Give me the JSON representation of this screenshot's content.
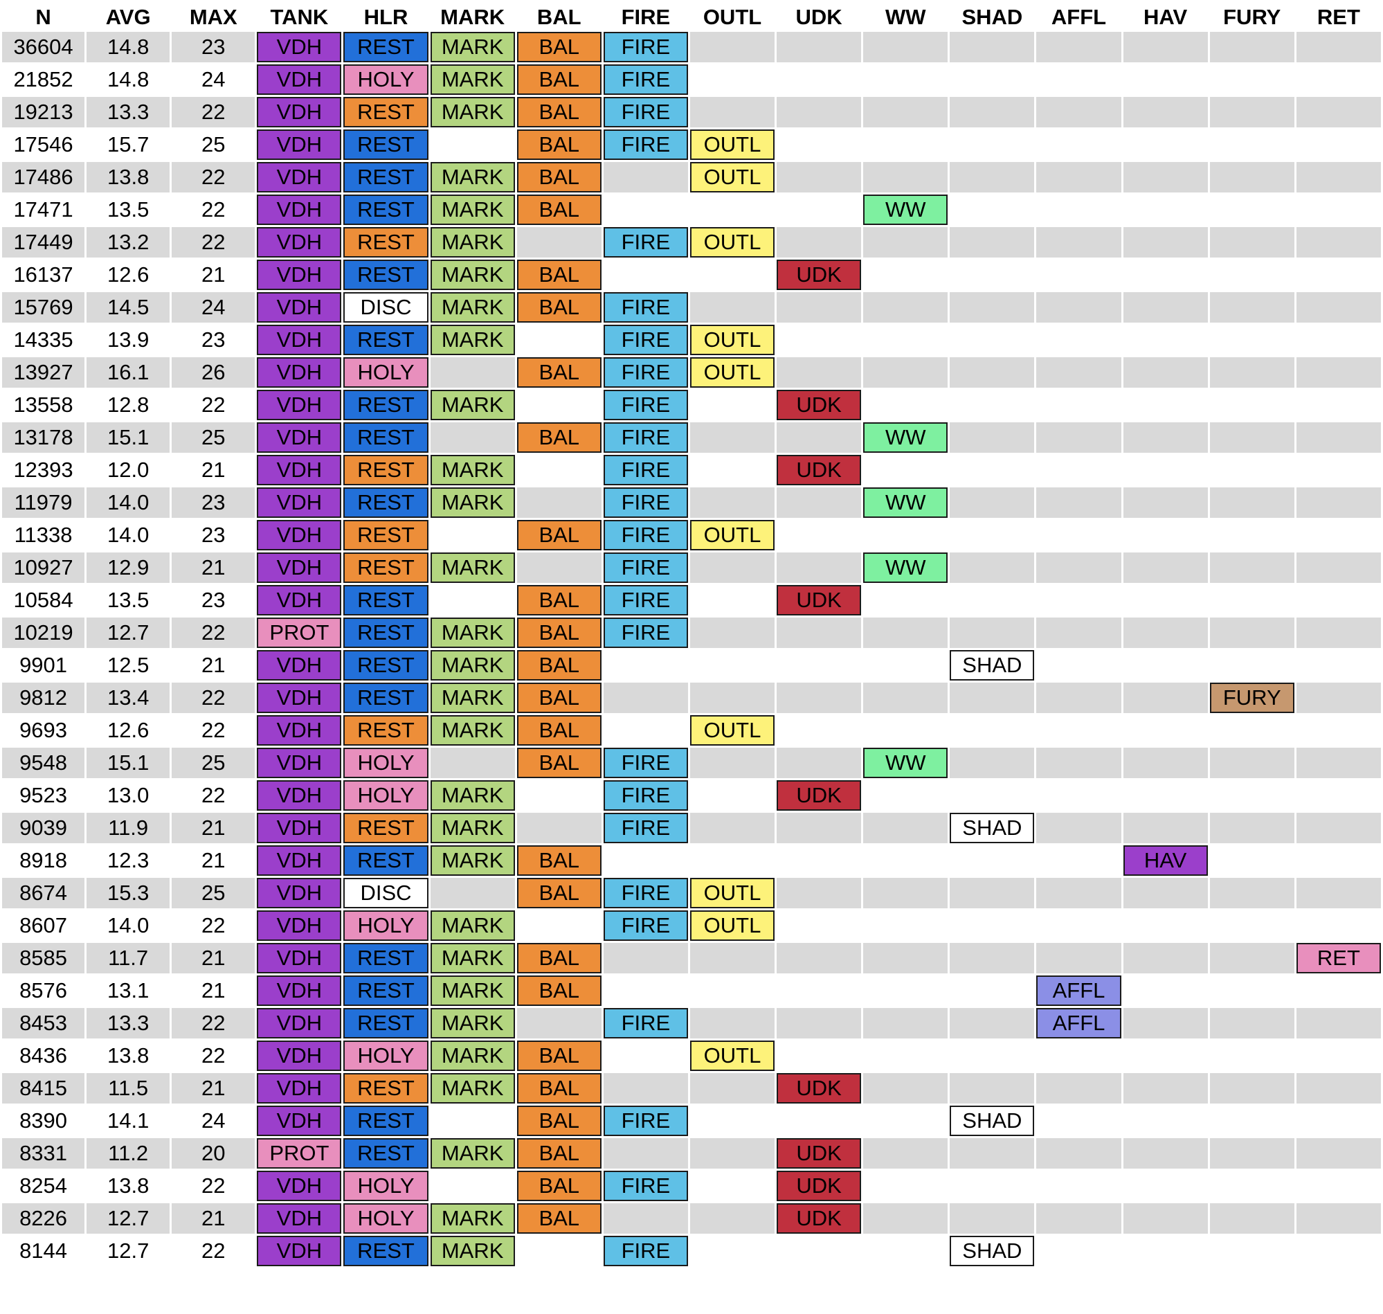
{
  "headers": [
    "N",
    "AVG",
    "MAX",
    "TANK",
    "HLR",
    "MARK",
    "BAL",
    "FIRE",
    "OUTL",
    "UDK",
    "WW",
    "SHAD",
    "AFFL",
    "HAV",
    "FURY",
    "RET"
  ],
  "spec_colors": {
    "VDH": "#9b3fcb",
    "PROT": "#e88fbd",
    "REST": "#ed8e39",
    "REST_ALT": "#2270d9",
    "HOLY": "#e88fbd",
    "DISC": "#ffffff",
    "MARK": "#b3d580",
    "BAL": "#ed8e39",
    "FIRE": "#5fc0e6",
    "OUTL": "#fdf27a",
    "UDK": "#c0303e",
    "WW": "#7ef0a0",
    "SHAD": "#ffffff",
    "AFFL": "#8b8fe6",
    "HAV": "#9b3fcb",
    "FURY": "#c6986f",
    "RET": "#e88fbd"
  },
  "rows": [
    {
      "n": "36604",
      "avg": "14.8",
      "max": "23",
      "cells": [
        "VDH",
        "REST",
        "MARK",
        "BAL",
        "FIRE",
        "",
        "",
        "",
        "",
        "",
        "",
        "",
        ""
      ],
      "hlr_blue": true
    },
    {
      "n": "21852",
      "avg": "14.8",
      "max": "24",
      "cells": [
        "VDH",
        "HOLY",
        "MARK",
        "BAL",
        "FIRE",
        "",
        "",
        "",
        "",
        "",
        "",
        "",
        ""
      ],
      "hlr_blue": false
    },
    {
      "n": "19213",
      "avg": "13.3",
      "max": "22",
      "cells": [
        "VDH",
        "REST",
        "MARK",
        "BAL",
        "FIRE",
        "",
        "",
        "",
        "",
        "",
        "",
        "",
        ""
      ],
      "hlr_blue": false
    },
    {
      "n": "17546",
      "avg": "15.7",
      "max": "25",
      "cells": [
        "VDH",
        "REST",
        "",
        "BAL",
        "FIRE",
        "OUTL",
        "",
        "",
        "",
        "",
        "",
        "",
        ""
      ],
      "hlr_blue": true
    },
    {
      "n": "17486",
      "avg": "13.8",
      "max": "22",
      "cells": [
        "VDH",
        "REST",
        "MARK",
        "BAL",
        "",
        "OUTL",
        "",
        "",
        "",
        "",
        "",
        "",
        ""
      ],
      "hlr_blue": true
    },
    {
      "n": "17471",
      "avg": "13.5",
      "max": "22",
      "cells": [
        "VDH",
        "REST",
        "MARK",
        "BAL",
        "",
        "",
        "",
        "WW",
        "",
        "",
        "",
        "",
        ""
      ],
      "hlr_blue": true
    },
    {
      "n": "17449",
      "avg": "13.2",
      "max": "22",
      "cells": [
        "VDH",
        "REST",
        "MARK",
        "",
        "FIRE",
        "OUTL",
        "",
        "",
        "",
        "",
        "",
        "",
        ""
      ],
      "hlr_blue": false
    },
    {
      "n": "16137",
      "avg": "12.6",
      "max": "21",
      "cells": [
        "VDH",
        "REST",
        "MARK",
        "BAL",
        "",
        "",
        "UDK",
        "",
        "",
        "",
        "",
        "",
        ""
      ],
      "hlr_blue": true
    },
    {
      "n": "15769",
      "avg": "14.5",
      "max": "24",
      "cells": [
        "VDH",
        "DISC",
        "MARK",
        "BAL",
        "FIRE",
        "",
        "",
        "",
        "",
        "",
        "",
        "",
        ""
      ],
      "hlr_blue": false
    },
    {
      "n": "14335",
      "avg": "13.9",
      "max": "23",
      "cells": [
        "VDH",
        "REST",
        "MARK",
        "",
        "FIRE",
        "OUTL",
        "",
        "",
        "",
        "",
        "",
        "",
        ""
      ],
      "hlr_blue": true
    },
    {
      "n": "13927",
      "avg": "16.1",
      "max": "26",
      "cells": [
        "VDH",
        "HOLY",
        "",
        "BAL",
        "FIRE",
        "OUTL",
        "",
        "",
        "",
        "",
        "",
        "",
        ""
      ],
      "hlr_blue": false
    },
    {
      "n": "13558",
      "avg": "12.8",
      "max": "22",
      "cells": [
        "VDH",
        "REST",
        "MARK",
        "",
        "FIRE",
        "",
        "UDK",
        "",
        "",
        "",
        "",
        "",
        ""
      ],
      "hlr_blue": true
    },
    {
      "n": "13178",
      "avg": "15.1",
      "max": "25",
      "cells": [
        "VDH",
        "REST",
        "",
        "BAL",
        "FIRE",
        "",
        "",
        "WW",
        "",
        "",
        "",
        "",
        ""
      ],
      "hlr_blue": true
    },
    {
      "n": "12393",
      "avg": "12.0",
      "max": "21",
      "cells": [
        "VDH",
        "REST",
        "MARK",
        "",
        "FIRE",
        "",
        "UDK",
        "",
        "",
        "",
        "",
        "",
        ""
      ],
      "hlr_blue": false
    },
    {
      "n": "11979",
      "avg": "14.0",
      "max": "23",
      "cells": [
        "VDH",
        "REST",
        "MARK",
        "",
        "FIRE",
        "",
        "",
        "WW",
        "",
        "",
        "",
        "",
        ""
      ],
      "hlr_blue": true
    },
    {
      "n": "11338",
      "avg": "14.0",
      "max": "23",
      "cells": [
        "VDH",
        "REST",
        "",
        "BAL",
        "FIRE",
        "OUTL",
        "",
        "",
        "",
        "",
        "",
        "",
        ""
      ],
      "hlr_blue": false
    },
    {
      "n": "10927",
      "avg": "12.9",
      "max": "21",
      "cells": [
        "VDH",
        "REST",
        "MARK",
        "",
        "FIRE",
        "",
        "",
        "WW",
        "",
        "",
        "",
        "",
        ""
      ],
      "hlr_blue": false
    },
    {
      "n": "10584",
      "avg": "13.5",
      "max": "23",
      "cells": [
        "VDH",
        "REST",
        "",
        "BAL",
        "FIRE",
        "",
        "UDK",
        "",
        "",
        "",
        "",
        "",
        ""
      ],
      "hlr_blue": true
    },
    {
      "n": "10219",
      "avg": "12.7",
      "max": "22",
      "cells": [
        "PROT",
        "REST",
        "MARK",
        "BAL",
        "FIRE",
        "",
        "",
        "",
        "",
        "",
        "",
        "",
        ""
      ],
      "hlr_blue": true
    },
    {
      "n": "9901",
      "avg": "12.5",
      "max": "21",
      "cells": [
        "VDH",
        "REST",
        "MARK",
        "BAL",
        "",
        "",
        "",
        "",
        "SHAD",
        "",
        "",
        "",
        ""
      ],
      "hlr_blue": true
    },
    {
      "n": "9812",
      "avg": "13.4",
      "max": "22",
      "cells": [
        "VDH",
        "REST",
        "MARK",
        "BAL",
        "",
        "",
        "",
        "",
        "",
        "",
        "",
        "FURY",
        ""
      ],
      "hlr_blue": true
    },
    {
      "n": "9693",
      "avg": "12.6",
      "max": "22",
      "cells": [
        "VDH",
        "REST",
        "MARK",
        "BAL",
        "",
        "OUTL",
        "",
        "",
        "",
        "",
        "",
        "",
        ""
      ],
      "hlr_blue": false
    },
    {
      "n": "9548",
      "avg": "15.1",
      "max": "25",
      "cells": [
        "VDH",
        "HOLY",
        "",
        "BAL",
        "FIRE",
        "",
        "",
        "WW",
        "",
        "",
        "",
        "",
        ""
      ],
      "hlr_blue": false
    },
    {
      "n": "9523",
      "avg": "13.0",
      "max": "22",
      "cells": [
        "VDH",
        "HOLY",
        "MARK",
        "",
        "FIRE",
        "",
        "UDK",
        "",
        "",
        "",
        "",
        "",
        ""
      ],
      "hlr_blue": false
    },
    {
      "n": "9039",
      "avg": "11.9",
      "max": "21",
      "cells": [
        "VDH",
        "REST",
        "MARK",
        "",
        "FIRE",
        "",
        "",
        "",
        "SHAD",
        "",
        "",
        "",
        ""
      ],
      "hlr_blue": false
    },
    {
      "n": "8918",
      "avg": "12.3",
      "max": "21",
      "cells": [
        "VDH",
        "REST",
        "MARK",
        "BAL",
        "",
        "",
        "",
        "",
        "",
        "",
        "HAV",
        "",
        ""
      ],
      "hlr_blue": true
    },
    {
      "n": "8674",
      "avg": "15.3",
      "max": "25",
      "cells": [
        "VDH",
        "DISC",
        "",
        "BAL",
        "FIRE",
        "OUTL",
        "",
        "",
        "",
        "",
        "",
        "",
        ""
      ],
      "hlr_blue": false
    },
    {
      "n": "8607",
      "avg": "14.0",
      "max": "22",
      "cells": [
        "VDH",
        "HOLY",
        "MARK",
        "",
        "FIRE",
        "OUTL",
        "",
        "",
        "",
        "",
        "",
        "",
        ""
      ],
      "hlr_blue": false
    },
    {
      "n": "8585",
      "avg": "11.7",
      "max": "21",
      "cells": [
        "VDH",
        "REST",
        "MARK",
        "BAL",
        "",
        "",
        "",
        "",
        "",
        "",
        "",
        "",
        "RET"
      ],
      "hlr_blue": true
    },
    {
      "n": "8576",
      "avg": "13.1",
      "max": "21",
      "cells": [
        "VDH",
        "REST",
        "MARK",
        "BAL",
        "",
        "",
        "",
        "",
        "",
        "AFFL",
        "",
        "",
        ""
      ],
      "hlr_blue": true
    },
    {
      "n": "8453",
      "avg": "13.3",
      "max": "22",
      "cells": [
        "VDH",
        "REST",
        "MARK",
        "",
        "FIRE",
        "",
        "",
        "",
        "",
        "AFFL",
        "",
        "",
        ""
      ],
      "hlr_blue": true
    },
    {
      "n": "8436",
      "avg": "13.8",
      "max": "22",
      "cells": [
        "VDH",
        "HOLY",
        "MARK",
        "BAL",
        "",
        "OUTL",
        "",
        "",
        "",
        "",
        "",
        "",
        ""
      ],
      "hlr_blue": false
    },
    {
      "n": "8415",
      "avg": "11.5",
      "max": "21",
      "cells": [
        "VDH",
        "REST",
        "MARK",
        "BAL",
        "",
        "",
        "UDK",
        "",
        "",
        "",
        "",
        "",
        ""
      ],
      "hlr_blue": false
    },
    {
      "n": "8390",
      "avg": "14.1",
      "max": "24",
      "cells": [
        "VDH",
        "REST",
        "",
        "BAL",
        "FIRE",
        "",
        "",
        "",
        "SHAD",
        "",
        "",
        "",
        ""
      ],
      "hlr_blue": true
    },
    {
      "n": "8331",
      "avg": "11.2",
      "max": "20",
      "cells": [
        "PROT",
        "REST",
        "MARK",
        "BAL",
        "",
        "",
        "UDK",
        "",
        "",
        "",
        "",
        "",
        ""
      ],
      "hlr_blue": true
    },
    {
      "n": "8254",
      "avg": "13.8",
      "max": "22",
      "cells": [
        "VDH",
        "HOLY",
        "",
        "BAL",
        "FIRE",
        "",
        "UDK",
        "",
        "",
        "",
        "",
        "",
        ""
      ],
      "hlr_blue": false
    },
    {
      "n": "8226",
      "avg": "12.7",
      "max": "21",
      "cells": [
        "VDH",
        "HOLY",
        "MARK",
        "BAL",
        "",
        "",
        "UDK",
        "",
        "",
        "",
        "",
        "",
        ""
      ],
      "hlr_blue": false
    },
    {
      "n": "8144",
      "avg": "12.7",
      "max": "22",
      "cells": [
        "VDH",
        "REST",
        "MARK",
        "",
        "FIRE",
        "",
        "",
        "",
        "SHAD",
        "",
        "",
        "",
        ""
      ],
      "hlr_blue": true
    }
  ]
}
